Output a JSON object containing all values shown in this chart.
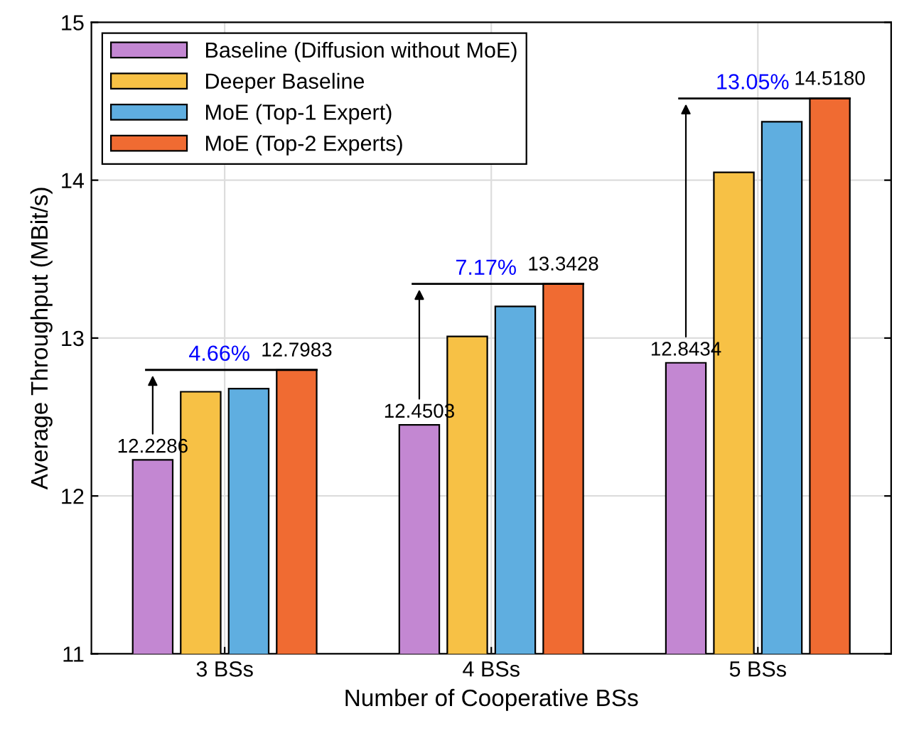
{
  "chart_data": {
    "type": "bar",
    "xlabel": "Number of Cooperative BSs",
    "ylabel": "Average Throughput (MBit/s)",
    "categories": [
      "3 BSs",
      "4 BSs",
      "5 BSs"
    ],
    "series": [
      {
        "name": "Baseline (Diffusion without MoE)",
        "color": "#c387d2",
        "values": [
          12.2286,
          12.4503,
          12.8434
        ],
        "value_labels": [
          "12.2286",
          "12.4503",
          "12.8434"
        ]
      },
      {
        "name": "Deeper Baseline",
        "color": "#f7c145",
        "values": [
          12.66,
          13.01,
          14.05
        ]
      },
      {
        "name": "MoE (Top-1 Expert)",
        "color": "#5faee0",
        "values": [
          12.68,
          13.2,
          14.37
        ]
      },
      {
        "name": "MoE (Top-2 Experts)",
        "color": "#f06b32",
        "values": [
          12.7983,
          13.3428,
          14.518
        ],
        "value_labels": [
          "12.7983",
          "13.3428",
          "14.5180"
        ]
      }
    ],
    "annotations": [
      "4.66%",
      "7.17%",
      "13.05%"
    ],
    "ylim": [
      11,
      15
    ],
    "yticks": [
      11,
      12,
      13,
      14,
      15
    ],
    "grid": true,
    "legend": "top left"
  }
}
